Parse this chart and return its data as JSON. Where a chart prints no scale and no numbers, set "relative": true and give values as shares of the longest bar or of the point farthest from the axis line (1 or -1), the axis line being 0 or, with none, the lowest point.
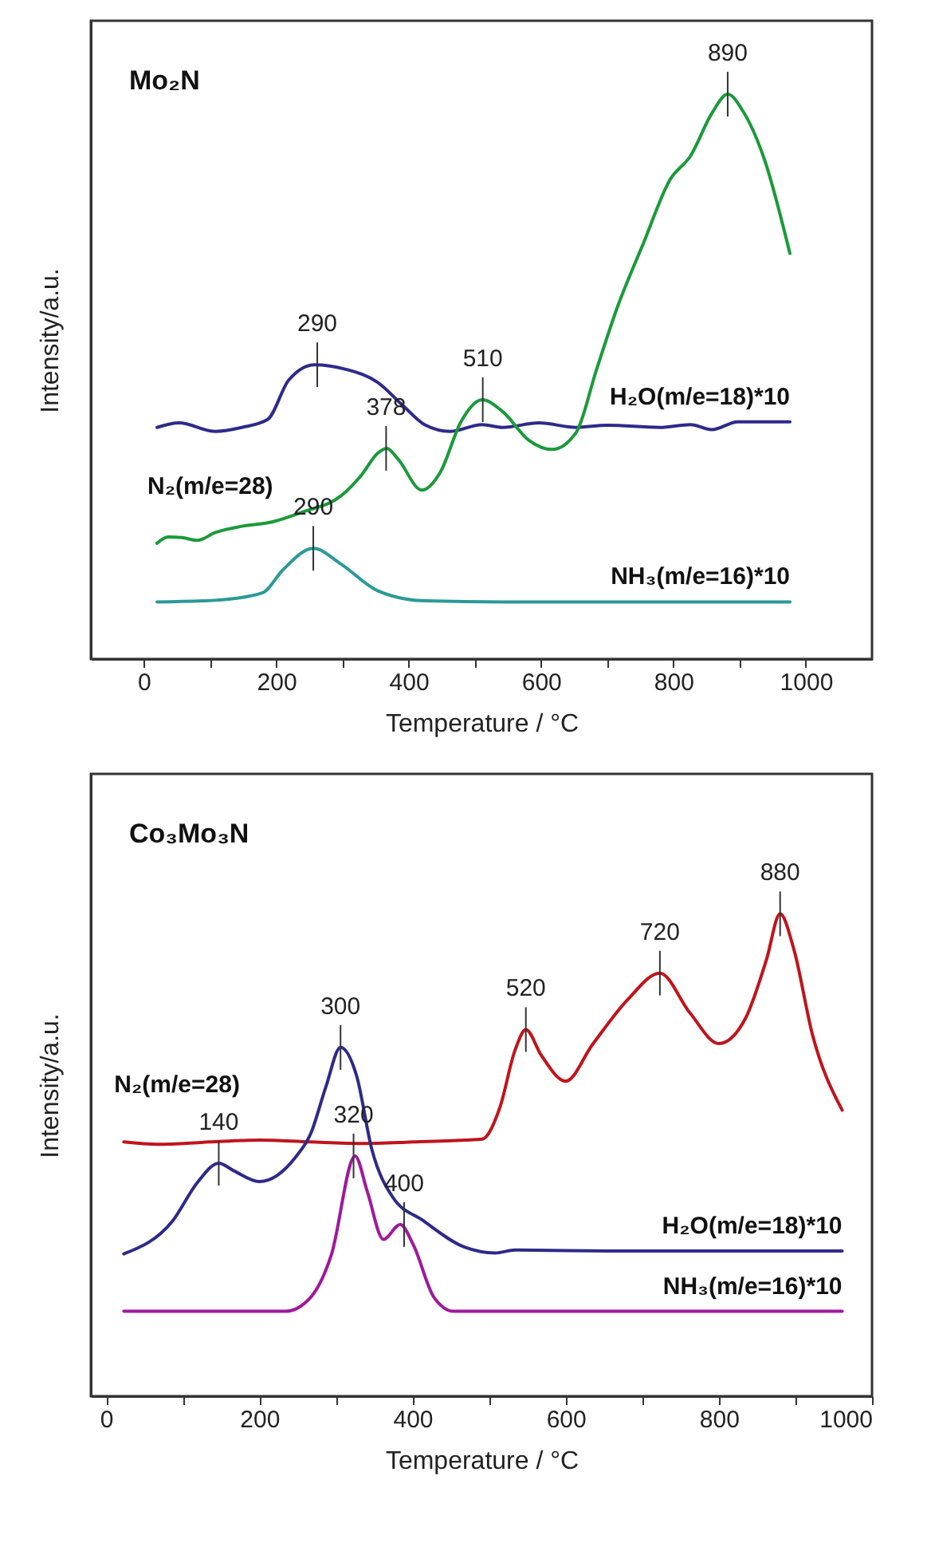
{
  "chart_data": [
    {
      "type": "line",
      "title": "Mo₂N",
      "xlabel": "Temperature / °C",
      "ylabel": "Intensity/a.u.",
      "relative": true,
      "legend": false,
      "grid": false,
      "xlim": [
        -80,
        1100
      ],
      "xticks": [
        0,
        {
          "value": 100,
          "label": null
        },
        200,
        {
          "value": 300,
          "label": null
        },
        400,
        {
          "value": 500,
          "label": null
        },
        600,
        {
          "value": 700,
          "label": null
        },
        800,
        {
          "value": 900,
          "label": null
        },
        1000
      ],
      "series": [
        {
          "name": "H₂O(m/e=18)*10",
          "color": "#2e2a8a",
          "x": [
            20,
            53,
            108,
            148,
            187,
            219,
            258,
            305,
            353,
            392,
            424,
            463,
            511,
            542,
            597,
            653,
            700,
            779,
            826,
            858,
            897,
            976
          ],
          "values": [
            0.41,
            0.418,
            0.403,
            0.41,
            0.424,
            0.494,
            0.521,
            0.513,
            0.49,
            0.448,
            0.415,
            0.403,
            0.415,
            0.41,
            0.418,
            0.41,
            0.414,
            0.41,
            0.415,
            0.406,
            0.42,
            0.42
          ]
        },
        {
          "name": "N₂(m/e=28)",
          "color": "#1a9a3a",
          "x": [
            20,
            37,
            57,
            81,
            108,
            148,
            195,
            242,
            298,
            329,
            353,
            367,
            384,
            420,
            448,
            479,
            511,
            542,
            582,
            617,
            653,
            684,
            716,
            755,
            795,
            826,
            858,
            882,
            905,
            937,
            976
          ],
          "values": [
            0.205,
            0.216,
            0.215,
            0.21,
            0.224,
            0.235,
            0.243,
            0.261,
            0.289,
            0.326,
            0.364,
            0.373,
            0.354,
            0.299,
            0.331,
            0.42,
            0.459,
            0.438,
            0.387,
            0.371,
            0.401,
            0.513,
            0.625,
            0.737,
            0.849,
            0.891,
            0.966,
            1.0,
            0.97,
            0.886,
            0.718
          ]
        },
        {
          "name": "NH₃(m/e=16)*10",
          "color": "#2a9a96",
          "x": [
            20,
            108,
            179,
            211,
            256,
            298,
            353,
            424,
            542,
            976
          ],
          "values": [
            0.101,
            0.104,
            0.117,
            0.159,
            0.196,
            0.168,
            0.121,
            0.103,
            0.101,
            0.101
          ]
        }
      ],
      "annotations": [
        {
          "text": "290",
          "x": 262,
          "y": 0.521
        },
        {
          "text": "378",
          "x": 366,
          "y": 0.373
        },
        {
          "text": "510",
          "x": 512,
          "y": 0.459
        },
        {
          "text": "890",
          "x": 882,
          "y": 1.0
        },
        {
          "text": "290",
          "x": 256,
          "y": 0.196
        }
      ]
    },
    {
      "type": "line",
      "title": "Co₃Mo₃N",
      "xlabel": "Temperature / °C",
      "ylabel": "Intensity/a.u.",
      "relative": true,
      "legend": false,
      "grid": false,
      "xlim": [
        -20,
        1000
      ],
      "xticks": [
        0,
        {
          "value": 100,
          "label": null
        },
        200,
        {
          "value": 300,
          "label": null
        },
        400,
        {
          "value": 500,
          "label": null
        },
        600,
        {
          "value": 700,
          "label": null
        },
        800,
        {
          "value": 900,
          "label": null
        },
        1000
      ],
      "series": [
        {
          "name": "N₂(m/e=28)",
          "color": "#c0141c",
          "x": [
            23,
            67,
            134,
            200,
            267,
            334,
            401,
            468,
            491,
            514,
            534,
            548,
            568,
            600,
            635,
            681,
            723,
            762,
            800,
            835,
            862,
            880,
            898,
            922,
            961
          ],
          "values": [
            0.527,
            0.522,
            0.527,
            0.531,
            0.527,
            0.524,
            0.527,
            0.531,
            0.533,
            0.598,
            0.718,
            0.76,
            0.707,
            0.653,
            0.729,
            0.822,
            0.877,
            0.795,
            0.731,
            0.784,
            0.904,
            1.0,
            0.926,
            0.751,
            0.593
          ]
        },
        {
          "name": "H₂O(m/e=18)*10",
          "color": "#2e2a8a",
          "x": [
            23,
            87,
            120,
            147,
            167,
            200,
            247,
            267,
            287,
            306,
            327,
            347,
            374,
            414,
            468,
            508,
            534,
            668,
            961
          ],
          "values": [
            0.295,
            0.364,
            0.445,
            0.483,
            0.467,
            0.445,
            0.495,
            0.544,
            0.642,
            0.723,
            0.664,
            0.511,
            0.413,
            0.364,
            0.309,
            0.297,
            0.303,
            0.301,
            0.301
          ]
        },
        {
          "name": "NH₃(m/e=16)*10",
          "color": "#a0189c",
          "x": [
            23,
            234,
            267,
            294,
            325,
            341,
            362,
            384,
            401,
            428,
            454,
            961
          ],
          "values": [
            0.176,
            0.176,
            0.205,
            0.293,
            0.498,
            0.424,
            0.325,
            0.356,
            0.314,
            0.205,
            0.176,
            0.176
          ]
        }
      ],
      "annotations": [
        {
          "text": "140",
          "x": 147,
          "y": 0.483
        },
        {
          "text": "300",
          "x": 306,
          "y": 0.723
        },
        {
          "text": "320",
          "x": 323,
          "y": 0.498
        },
        {
          "text": "400",
          "x": 389,
          "y": 0.356
        },
        {
          "text": "520",
          "x": 548,
          "y": 0.76
        },
        {
          "text": "720",
          "x": 723,
          "y": 0.877
        },
        {
          "text": "880",
          "x": 880,
          "y": 1.0
        }
      ]
    }
  ]
}
